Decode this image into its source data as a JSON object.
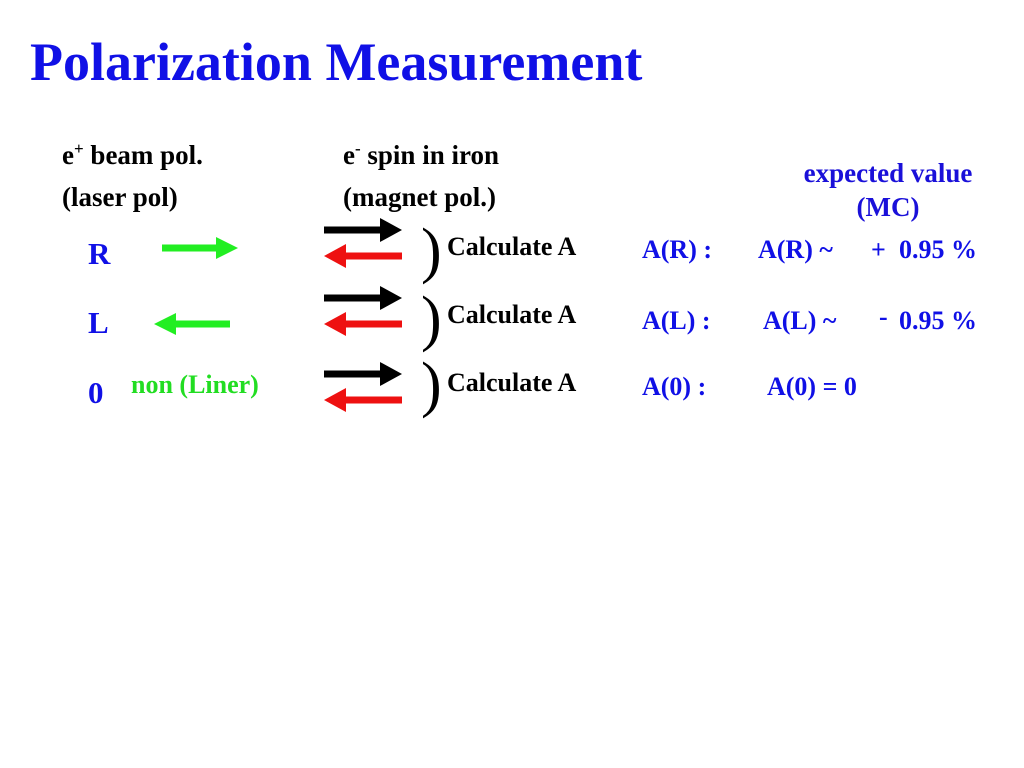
{
  "title": "Polarization Measurement",
  "headers": {
    "beam_e": "e",
    "beam_sup": "+",
    "beam_rest": " beam pol.",
    "beam_line2": "(laser pol)",
    "spin_e": "e",
    "spin_sup": "-",
    "spin_rest": " spin in iron",
    "spin_line2": "(magnet pol.)",
    "expected_line1": "expected value",
    "expected_line2": "(MC)"
  },
  "rows": [
    {
      "label": "R",
      "beam_text": "",
      "calc": "Calculate A",
      "result_left": "A(R) :",
      "result_mid": "A(R) ~",
      "result_sign": "+",
      "result_value": "0.95 %"
    },
    {
      "label": "L",
      "beam_text": "",
      "calc": "Calculate A",
      "result_left": "A(L)  :",
      "result_mid": "A(L) ~",
      "result_sign": "-",
      "result_value": "0.95 %"
    },
    {
      "label": "0",
      "beam_text": "non (Liner)",
      "calc": "Calculate A",
      "result_left": "A(0)  :",
      "result_mid": "A(0) = 0",
      "result_sign": "",
      "result_value": ""
    }
  ],
  "colors": {
    "title": "#1010e6",
    "beam_arrow": "#22ee22",
    "spin_arrow_top": "#000000",
    "spin_arrow_bottom": "#ee1111"
  },
  "icons": [
    "arrow-right-icon",
    "arrow-left-icon",
    "spin-arrow-pair-icon",
    "paren-icon"
  ]
}
